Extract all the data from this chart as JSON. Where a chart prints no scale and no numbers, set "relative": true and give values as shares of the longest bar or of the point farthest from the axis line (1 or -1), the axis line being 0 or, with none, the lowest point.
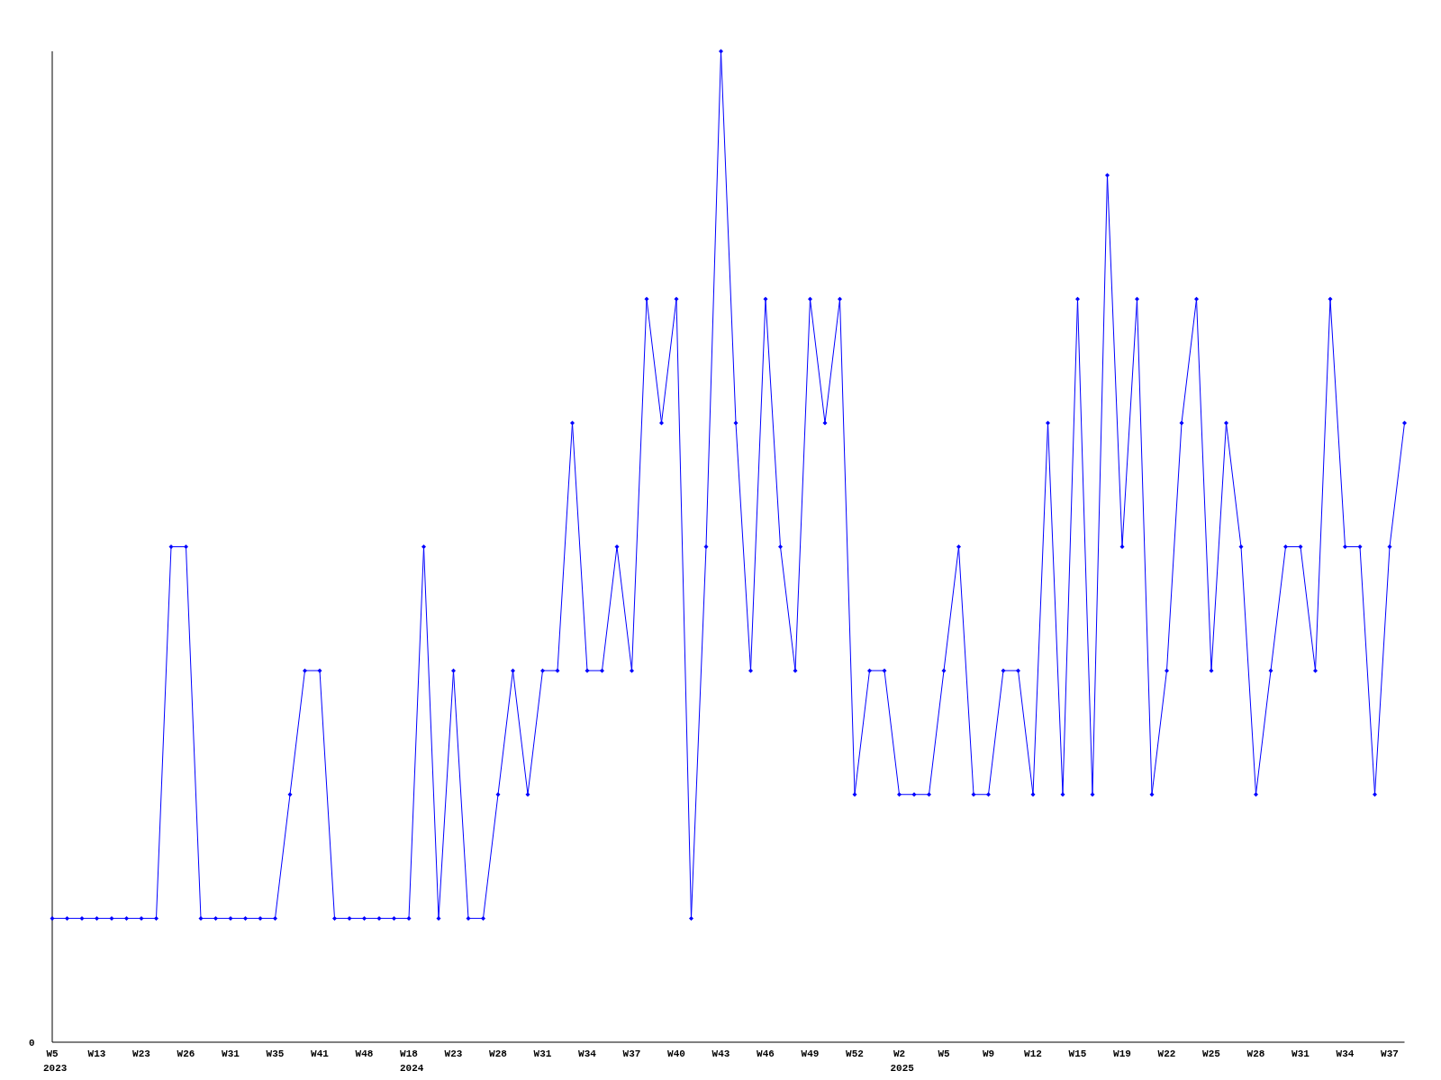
{
  "chart_data": {
    "type": "line",
    "relative": true,
    "color": "#0000ff",
    "marker": "diamond",
    "line_style": "solid",
    "categories": [
      "W5",
      null,
      null,
      "W13",
      null,
      null,
      "W23",
      null,
      null,
      "W26",
      null,
      null,
      "W31",
      null,
      null,
      "W35",
      null,
      null,
      "W41",
      null,
      null,
      "W48",
      null,
      null,
      "W18",
      null,
      null,
      "W23",
      null,
      null,
      "W28",
      null,
      null,
      "W31",
      null,
      null,
      "W34",
      null,
      null,
      "W37",
      null,
      null,
      "W40",
      null,
      null,
      "W43",
      null,
      null,
      "W46",
      null,
      null,
      "W49",
      null,
      null,
      "W52",
      null,
      null,
      "W2",
      null,
      null,
      "W5",
      null,
      null,
      "W9",
      null,
      null,
      "W12",
      null,
      null,
      "W15",
      null,
      null,
      "W19",
      null,
      null,
      "W22",
      null,
      null,
      "W25",
      null,
      null,
      "W28",
      null,
      null,
      "W31",
      null,
      null,
      "W34",
      null,
      null,
      "W37",
      null
    ],
    "values": [
      0.125,
      0.125,
      0.125,
      0.125,
      0.125,
      0.125,
      0.125,
      0.125,
      0.5,
      0.5,
      0.125,
      0.125,
      0.125,
      0.125,
      0.125,
      0.125,
      0.25,
      0.375,
      0.375,
      0.125,
      0.125,
      0.125,
      0.125,
      0.125,
      0.125,
      0.5,
      0.125,
      0.375,
      0.125,
      0.125,
      0.25,
      0.375,
      0.25,
      0.375,
      0.375,
      0.625,
      0.375,
      0.375,
      0.5,
      0.375,
      0.75,
      0.625,
      0.75,
      0.125,
      0.5,
      1,
      0.625,
      0.375,
      0.75,
      0.5,
      0.375,
      0.75,
      0.625,
      0.75,
      0.25,
      0.375,
      0.375,
      0.25,
      0.25,
      0.25,
      0.375,
      0.5,
      0.25,
      0.25,
      0.375,
      0.375,
      0.25,
      0.625,
      0.25,
      0.75,
      0.25,
      0.875,
      0.5,
      0.75,
      0.25,
      0.375,
      0.625,
      0.75,
      0.375,
      0.625,
      0.5,
      0.25,
      0.375,
      0.5,
      0.5,
      0.375,
      0.75,
      0.5,
      0.5,
      0.25,
      0.5,
      0.625
    ],
    "annotations": [
      "0",
      "2023",
      "2024",
      "2025"
    ]
  }
}
